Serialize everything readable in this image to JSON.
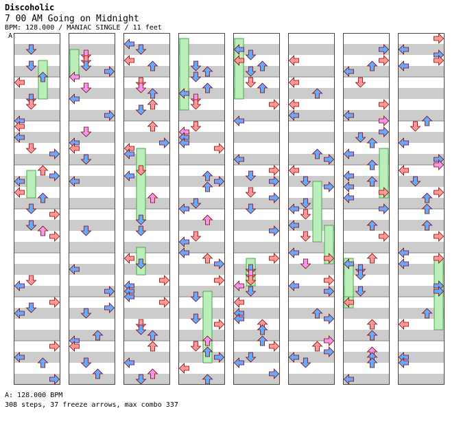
{
  "header": {
    "title": "Discoholic",
    "song": "7 00 AM Going on Midnight",
    "meta": "BPM: 128.000 / MANIAC SINGLE / 11 feet",
    "marker": "A"
  },
  "footer": {
    "bpm_line": "A: 128.000 BPM",
    "stats_line": "308 steps, 37 freeze arrows, max combo 337"
  },
  "chart_data": {
    "type": "step-chart",
    "columns": 8,
    "lanes": [
      "left",
      "down",
      "up",
      "right"
    ],
    "total_steps": 308,
    "freeze_arrows": 37,
    "max_combo": 337,
    "bpm": 128.0,
    "colors": {
      "quarter_note": "#ff9999",
      "eighth_note": "#66aaff",
      "sixteenth_note": "#ee99ee",
      "freeze": "#bbeebb",
      "stripe": "#cccccc"
    }
  }
}
